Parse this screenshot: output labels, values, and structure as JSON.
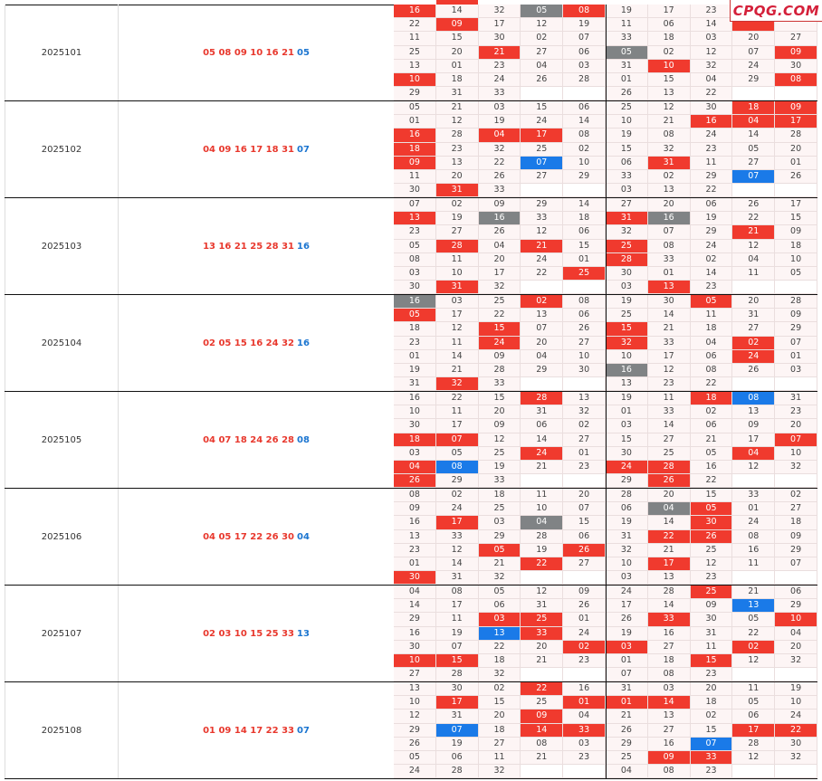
{
  "watermark": "CPQG.COM",
  "colors": {
    "red": "#f03a2e",
    "gray": "#808385",
    "blue": "#1a7ae8",
    "cell_bg": "#fdf5f5"
  },
  "cell_legend": {
    "r": "red-highlight",
    "g": "gray-highlight",
    "b": "blue-highlight"
  },
  "rows": [
    {
      "issue": "2025101",
      "red_numbers": "05 08 09 10 16 21",
      "blue_number": "05",
      "grid": [
        [
          "r16",
          "14",
          "32",
          "g05",
          "r08",
          "19",
          "17",
          "23",
          "",
          ""
        ],
        [
          "22",
          "r09",
          "17",
          "12",
          "19",
          "11",
          "06",
          "14",
          "r",
          ""
        ],
        [
          "11",
          "15",
          "30",
          "02",
          "07",
          "33",
          "18",
          "03",
          "20",
          "27"
        ],
        [
          "25",
          "20",
          "r21",
          "27",
          "06",
          "g05",
          "02",
          "12",
          "07",
          "r09"
        ],
        [
          "13",
          "01",
          "23",
          "04",
          "03",
          "31",
          "r10",
          "32",
          "24",
          "30"
        ],
        [
          "r10",
          "18",
          "24",
          "26",
          "28",
          "01",
          "15",
          "04",
          "29",
          "r08"
        ],
        [
          "29",
          "31",
          "33",
          "-",
          "-",
          "26",
          "13",
          "22",
          "-",
          "-"
        ]
      ]
    },
    {
      "issue": "2025102",
      "red_numbers": "04 09 16 17 18 31",
      "blue_number": "07",
      "grid": [
        [
          "05",
          "21",
          "03",
          "15",
          "06",
          "25",
          "12",
          "30",
          "r18",
          "r09"
        ],
        [
          "01",
          "12",
          "19",
          "24",
          "14",
          "10",
          "21",
          "r16",
          "r04",
          "r17"
        ],
        [
          "r16",
          "28",
          "r04",
          "r17",
          "08",
          "19",
          "08",
          "24",
          "14",
          "28"
        ],
        [
          "r18",
          "23",
          "32",
          "25",
          "02",
          "15",
          "32",
          "23",
          "05",
          "20"
        ],
        [
          "r09",
          "13",
          "22",
          "b07",
          "10",
          "06",
          "r31",
          "11",
          "27",
          "01"
        ],
        [
          "11",
          "20",
          "26",
          "27",
          "29",
          "33",
          "02",
          "29",
          "b07",
          "26"
        ],
        [
          "30",
          "r31",
          "33",
          "-",
          "-",
          "03",
          "13",
          "22",
          "-",
          "-"
        ]
      ]
    },
    {
      "issue": "2025103",
      "red_numbers": "13 16 21 25 28 31",
      "blue_number": "16",
      "grid": [
        [
          "07",
          "02",
          "09",
          "29",
          "14",
          "27",
          "20",
          "06",
          "26",
          "17"
        ],
        [
          "r13",
          "19",
          "g16",
          "33",
          "18",
          "r31",
          "g16",
          "19",
          "22",
          "15"
        ],
        [
          "23",
          "27",
          "26",
          "12",
          "06",
          "32",
          "07",
          "29",
          "r21",
          "09"
        ],
        [
          "05",
          "r28",
          "04",
          "r21",
          "15",
          "r25",
          "08",
          "24",
          "12",
          "18"
        ],
        [
          "08",
          "11",
          "20",
          "24",
          "01",
          "r28",
          "33",
          "02",
          "04",
          "10"
        ],
        [
          "03",
          "10",
          "17",
          "22",
          "r25",
          "30",
          "01",
          "14",
          "11",
          "05"
        ],
        [
          "30",
          "r31",
          "32",
          "-",
          "-",
          "03",
          "r13",
          "23",
          "-",
          "-"
        ]
      ]
    },
    {
      "issue": "2025104",
      "red_numbers": "02 05 15 16 24 32",
      "blue_number": "16",
      "grid": [
        [
          "g16",
          "03",
          "25",
          "r02",
          "08",
          "19",
          "30",
          "r05",
          "20",
          "28"
        ],
        [
          "r05",
          "17",
          "22",
          "13",
          "06",
          "25",
          "14",
          "11",
          "31",
          "09"
        ],
        [
          "18",
          "12",
          "r15",
          "07",
          "26",
          "r15",
          "21",
          "18",
          "27",
          "29"
        ],
        [
          "23",
          "11",
          "r24",
          "20",
          "27",
          "r32",
          "33",
          "04",
          "r02",
          "07"
        ],
        [
          "01",
          "14",
          "09",
          "04",
          "10",
          "10",
          "17",
          "06",
          "r24",
          "01"
        ],
        [
          "19",
          "21",
          "28",
          "29",
          "30",
          "g16",
          "12",
          "08",
          "26",
          "03"
        ],
        [
          "31",
          "r32",
          "33",
          "-",
          "-",
          "13",
          "23",
          "22",
          "-",
          "-"
        ]
      ]
    },
    {
      "issue": "2025105",
      "red_numbers": "04 07 18 24 26 28",
      "blue_number": "08",
      "grid": [
        [
          "16",
          "22",
          "15",
          "r28",
          "13",
          "19",
          "11",
          "r18",
          "b08",
          "31"
        ],
        [
          "10",
          "11",
          "20",
          "31",
          "32",
          "01",
          "33",
          "02",
          "13",
          "23"
        ],
        [
          "30",
          "17",
          "09",
          "06",
          "02",
          "03",
          "14",
          "06",
          "09",
          "20"
        ],
        [
          "r18",
          "r07",
          "12",
          "14",
          "27",
          "15",
          "27",
          "21",
          "17",
          "r07"
        ],
        [
          "03",
          "05",
          "25",
          "r24",
          "01",
          "30",
          "25",
          "05",
          "r04",
          "10"
        ],
        [
          "r04",
          "b08",
          "19",
          "21",
          "23",
          "r24",
          "r28",
          "16",
          "12",
          "32"
        ],
        [
          "r26",
          "29",
          "33",
          "-",
          "-",
          "29",
          "r26",
          "22",
          "-",
          "-"
        ]
      ]
    },
    {
      "issue": "2025106",
      "red_numbers": "04 05 17 22 26 30",
      "blue_number": "04",
      "grid": [
        [
          "08",
          "02",
          "18",
          "11",
          "20",
          "28",
          "20",
          "15",
          "33",
          "02"
        ],
        [
          "09",
          "24",
          "25",
          "10",
          "07",
          "06",
          "g04",
          "r05",
          "01",
          "27"
        ],
        [
          "16",
          "r17",
          "03",
          "g04",
          "15",
          "19",
          "14",
          "r30",
          "24",
          "18"
        ],
        [
          "13",
          "33",
          "29",
          "28",
          "06",
          "31",
          "r22",
          "r26",
          "08",
          "09"
        ],
        [
          "23",
          "12",
          "r05",
          "19",
          "r26",
          "32",
          "21",
          "25",
          "16",
          "29"
        ],
        [
          "01",
          "14",
          "21",
          "r22",
          "27",
          "10",
          "r17",
          "12",
          "11",
          "07"
        ],
        [
          "r30",
          "31",
          "32",
          "-",
          "-",
          "03",
          "13",
          "23",
          "-",
          "-"
        ]
      ]
    },
    {
      "issue": "2025107",
      "red_numbers": "02 03 10 15 25 33",
      "blue_number": "13",
      "grid": [
        [
          "04",
          "08",
          "05",
          "12",
          "09",
          "24",
          "28",
          "r25",
          "21",
          "06"
        ],
        [
          "14",
          "17",
          "06",
          "31",
          "26",
          "17",
          "14",
          "09",
          "b13",
          "29"
        ],
        [
          "29",
          "11",
          "r03",
          "r25",
          "01",
          "26",
          "r33",
          "30",
          "05",
          "r10"
        ],
        [
          "16",
          "19",
          "b13",
          "r33",
          "24",
          "19",
          "16",
          "31",
          "22",
          "04"
        ],
        [
          "30",
          "07",
          "22",
          "20",
          "r02",
          "r03",
          "27",
          "11",
          "r02",
          "20"
        ],
        [
          "r10",
          "r15",
          "18",
          "21",
          "23",
          "01",
          "18",
          "r15",
          "12",
          "32"
        ],
        [
          "27",
          "28",
          "32",
          "-",
          "-",
          "07",
          "08",
          "23",
          "-",
          "-"
        ]
      ]
    },
    {
      "issue": "2025108",
      "red_numbers": "01 09 14 17 22 33",
      "blue_number": "07",
      "grid": [
        [
          "13",
          "30",
          "02",
          "r22",
          "16",
          "31",
          "03",
          "20",
          "11",
          "19"
        ],
        [
          "10",
          "r17",
          "15",
          "25",
          "r01",
          "r01",
          "r14",
          "18",
          "05",
          "10"
        ],
        [
          "12",
          "31",
          "20",
          "r09",
          "04",
          "21",
          "13",
          "02",
          "06",
          "24"
        ],
        [
          "29",
          "b07",
          "18",
          "r14",
          "r33",
          "26",
          "27",
          "15",
          "r17",
          "r22"
        ],
        [
          "26",
          "19",
          "27",
          "08",
          "03",
          "29",
          "16",
          "b07",
          "28",
          "30"
        ],
        [
          "05",
          "06",
          "11",
          "21",
          "23",
          "25",
          "r09",
          "r33",
          "12",
          "32"
        ],
        [
          "24",
          "28",
          "32",
          "-",
          "-",
          "04",
          "08",
          "23",
          "-",
          "-"
        ]
      ]
    }
  ]
}
